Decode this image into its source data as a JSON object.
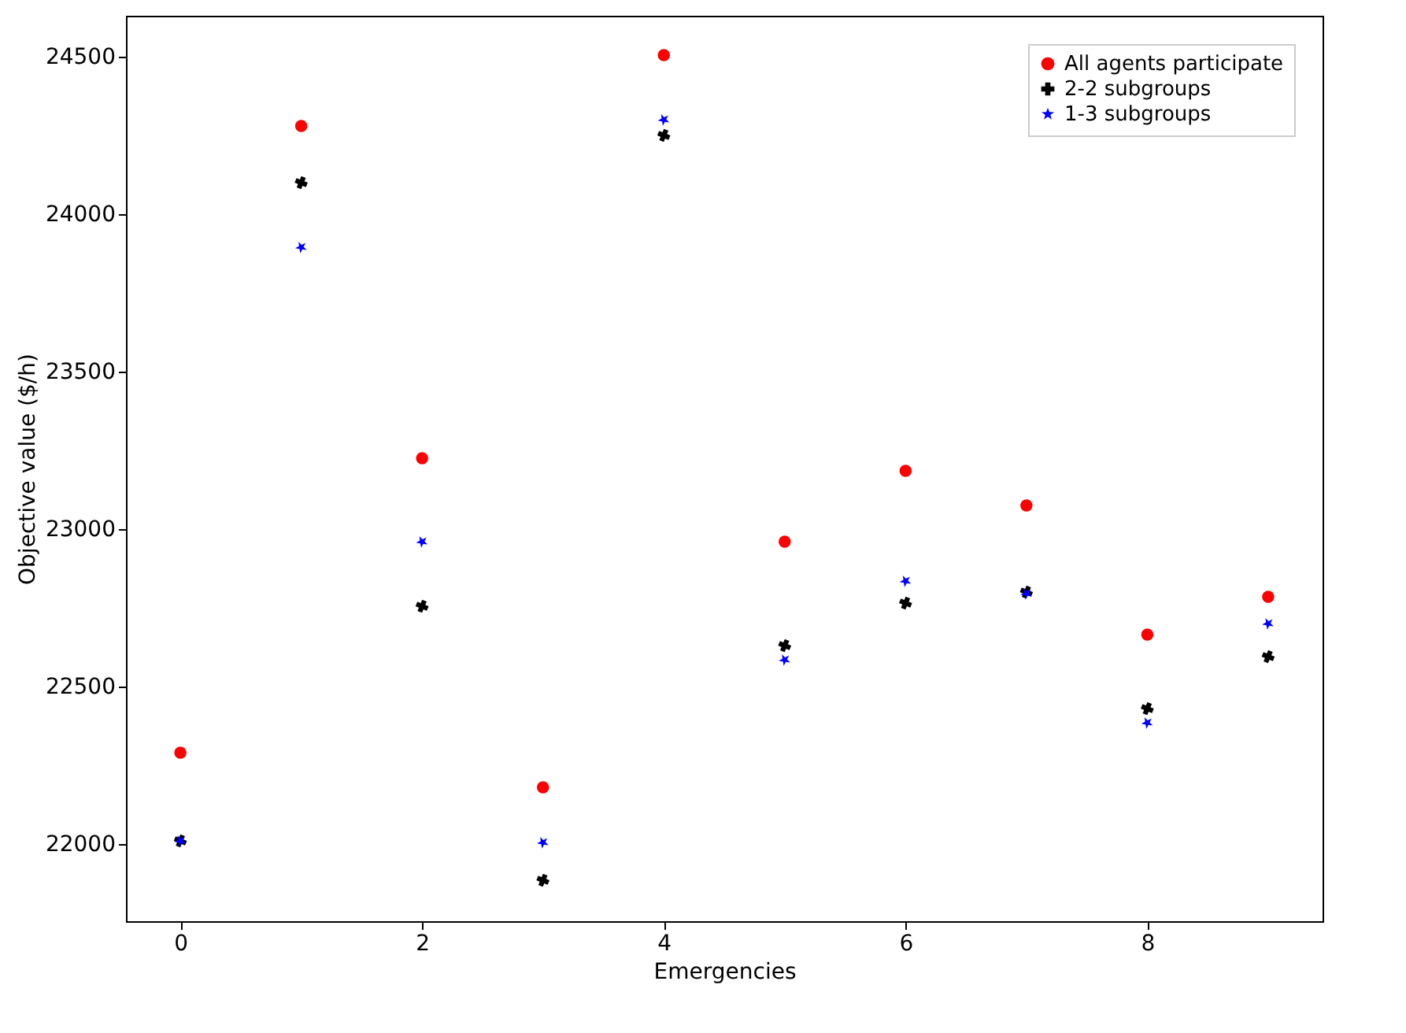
{
  "chart_data": {
    "type": "scatter",
    "xlabel": "Emergencies",
    "ylabel": "Objective value ($/h)",
    "x": [
      0,
      1,
      2,
      3,
      4,
      5,
      6,
      7,
      8,
      9
    ],
    "series": [
      {
        "name": "All agents participate",
        "color": "#ff0000",
        "marker": "circle",
        "values": [
          22290,
          24280,
          23225,
          22180,
          24505,
          22960,
          23185,
          23075,
          22665,
          22785
        ]
      },
      {
        "name": "2-2 subgroups",
        "color": "#000000",
        "marker": "cross",
        "values": [
          22010,
          24100,
          22755,
          21885,
          24250,
          22630,
          22765,
          22800,
          22430,
          22595
        ]
      },
      {
        "name": "1-3 subgroups",
        "color": "#0000ff",
        "marker": "star",
        "values": [
          22010,
          23895,
          22960,
          22005,
          24300,
          22585,
          22835,
          22795,
          22385,
          22700
        ]
      }
    ],
    "xlim": [
      -0.45,
      9.45
    ],
    "xticks": [
      0,
      2,
      4,
      6,
      8
    ],
    "ylim": [
      21755,
      24630
    ],
    "yticks": [
      22000,
      22500,
      23000,
      23500,
      24000,
      24500
    ],
    "grid": false,
    "legend": "top right"
  }
}
